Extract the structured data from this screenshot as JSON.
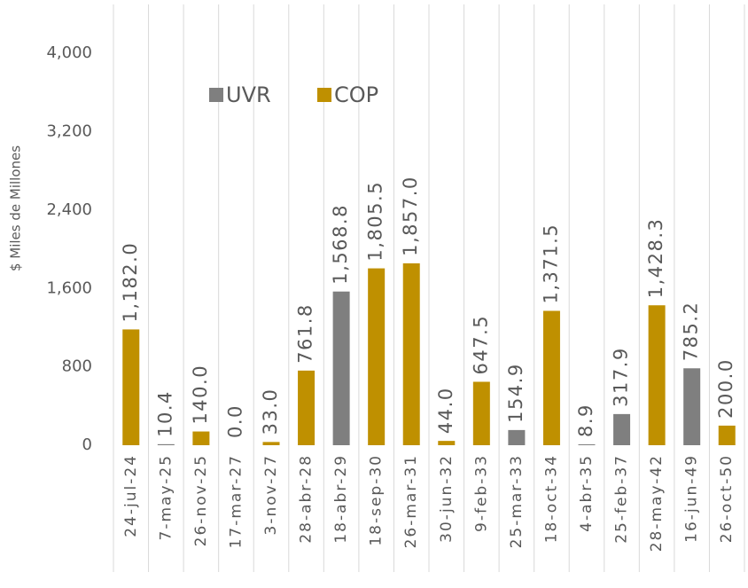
{
  "chart_data": {
    "type": "bar",
    "ylabel": "$ Miles de Millones",
    "categories": [
      "24-jul-24",
      "7-may-25",
      "26-nov-25",
      "17-mar-27",
      "3-nov-27",
      "28-abr-28",
      "18-abr-29",
      "18-sep-30",
      "26-mar-31",
      "30-jun-32",
      "9-feb-33",
      "25-mar-33",
      "18-oct-34",
      "4-abr-35",
      "25-feb-37",
      "28-may-42",
      "16-jun-49",
      "26-oct-50"
    ],
    "series": [
      {
        "name": "UVR",
        "color": "#7f7f7f",
        "values": [
          null,
          10.4,
          null,
          0.0,
          null,
          null,
          1568.8,
          null,
          null,
          null,
          null,
          154.9,
          null,
          8.9,
          317.9,
          null,
          785.2,
          null
        ],
        "value_labels": [
          null,
          "10.4",
          null,
          "0.0",
          null,
          null,
          "1,568.8",
          null,
          null,
          null,
          null,
          "154.9",
          null,
          "8.9",
          "317.9",
          null,
          "785.2",
          null
        ]
      },
      {
        "name": "COP",
        "color": "#bf9000",
        "values": [
          1182.0,
          null,
          140.0,
          null,
          33.0,
          761.8,
          null,
          1805.5,
          1857.0,
          44.0,
          647.5,
          null,
          1371.5,
          null,
          null,
          1428.3,
          null,
          200.0
        ],
        "value_labels": [
          "1,182.0",
          null,
          "140.0",
          null,
          "33.0",
          "761.8",
          null,
          "1,805.5",
          "1,857.0",
          "44.0",
          "647.5",
          null,
          "1,371.5",
          null,
          null,
          "1,428.3",
          null,
          "200.0"
        ]
      }
    ],
    "ylim": [
      0,
      4400
    ],
    "yticks": [
      0,
      800,
      {
        "value": 1600,
        "label": "1,600"
      },
      {
        "value": 2400,
        "label": "2,400"
      },
      {
        "value": 3200,
        "label": "3,200"
      },
      {
        "value": 4000,
        "label": "4,000"
      }
    ],
    "legend": "top"
  }
}
